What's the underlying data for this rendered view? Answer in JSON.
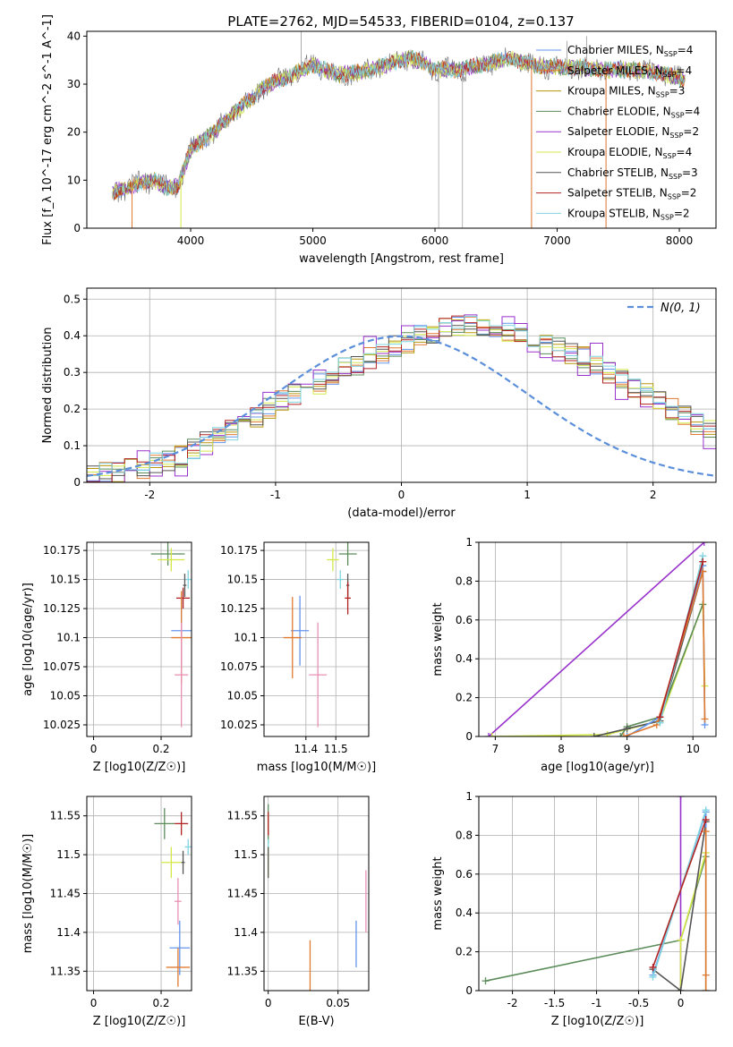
{
  "figure": {
    "title": "PLATE=2762, MJD=54533, FIBERID=0104, z=0.137"
  },
  "colors": {
    "Chabrier MILES, N_SSP=4": "#6495ED",
    "Salpeter MILES, N_SSP=4": "#E07A30",
    "Kroupa MILES, N_SSP=3": "#B8960C",
    "Chabrier ELODIE, N_SSP=4": "#5B8C5A",
    "Salpeter ELODIE, N_SSP=2": "#9932CC",
    "Kroupa ELODIE, N_SSP=4": "#D4E84A",
    "Chabrier STELIB, N_SSP=3": "#555555",
    "Salpeter STELIB, N_SSP=2": "#B22222",
    "Kroupa STELIB, N_SSP=2": "#7FD4E0",
    "extra_pink": "#E88FB4",
    "normal_curve": "#5B8FDB"
  },
  "chart_data": [
    {
      "id": "spectrum",
      "type": "line",
      "title": "PLATE=2762, MJD=54533, FIBERID=0104, z=0.137",
      "xlabel": "wavelength [Angstrom, rest frame]",
      "ylabel": "Flux [f_λ 10^-17 erg cm^-2 s^-1 A^-1]",
      "xlim": [
        3150,
        8300
      ],
      "ylim": [
        0,
        41
      ],
      "xticks": [
        4000,
        5000,
        6000,
        7000,
        8000
      ],
      "yticks": [
        0,
        10,
        20,
        30,
        40
      ],
      "legend_position": "top-right",
      "series": [
        {
          "name": "Chabrier MILES, N_SSP=4"
        },
        {
          "name": "Salpeter MILES, N_SSP=4"
        },
        {
          "name": "Kroupa MILES, N_SSP=3"
        },
        {
          "name": "Chabrier ELODIE, N_SSP=4"
        },
        {
          "name": "Salpeter ELODIE, N_SSP=2"
        },
        {
          "name": "Kroupa ELODIE, N_SSP=4"
        },
        {
          "name": "Chabrier STELIB, N_SSP=3"
        },
        {
          "name": "Salpeter STELIB, N_SSP=2"
        },
        {
          "name": "Kroupa STELIB, N_SSP=2"
        }
      ],
      "continuum": {
        "x": [
          3360,
          3500,
          3600,
          3700,
          3800,
          3900,
          4000,
          4100,
          4200,
          4300,
          4400,
          4500,
          4600,
          4800,
          5000,
          5200,
          5400,
          5600,
          5800,
          5900,
          6000,
          6200,
          6400,
          6600,
          6800,
          7000,
          7200,
          7400,
          7600,
          7800,
          8050
        ],
        "y": [
          7.5,
          8.5,
          9.5,
          10,
          8.5,
          9,
          16.5,
          18.5,
          20,
          23,
          25,
          27,
          29.5,
          31.5,
          34,
          32,
          32.5,
          34,
          35.5,
          34.5,
          33,
          33,
          34,
          35.5,
          34,
          33.5,
          33.5,
          33,
          33,
          32.5,
          31
        ]
      },
      "gray_dips": [
        {
          "x": 6030,
          "ymin": 0
        },
        {
          "x": 6225,
          "ymin": 0
        },
        {
          "x": 6790,
          "ymin": 0
        },
        {
          "x": 7400,
          "ymin": 0
        }
      ],
      "gray_spikes": [
        {
          "x": 4905,
          "y": 41
        },
        {
          "x": 7080,
          "y": 39
        },
        {
          "x": 7240,
          "y": 40
        }
      ],
      "edges": [
        {
          "series": 1,
          "x": 3520
        },
        {
          "series": 5,
          "x": 3920
        },
        {
          "series": 1,
          "x": 6790
        },
        {
          "series": 1,
          "x": 7400
        }
      ]
    },
    {
      "id": "residuals",
      "type": "bar",
      "xlabel": "(data-model)/error",
      "ylabel": "Normed distribution",
      "xlim": [
        -2.5,
        2.5
      ],
      "ylim": [
        0,
        0.53
      ],
      "xticks": [
        -2,
        -1,
        0,
        1,
        2
      ],
      "yticks": [
        0.0,
        0.1,
        0.2,
        0.3,
        0.4,
        0.5
      ],
      "legend": [
        {
          "label": "N(0, 1)",
          "style": "dashed"
        }
      ],
      "legend_position": "top-right",
      "bin_width": 0.1,
      "base_bins": [
        0.02,
        0.025,
        0.03,
        0.035,
        0.04,
        0.05,
        0.06,
        0.07,
        0.09,
        0.11,
        0.13,
        0.14,
        0.16,
        0.18,
        0.2,
        0.22,
        0.24,
        0.25,
        0.27,
        0.29,
        0.31,
        0.32,
        0.34,
        0.35,
        0.37,
        0.38,
        0.4,
        0.41,
        0.42,
        0.43,
        0.43,
        0.43,
        0.42,
        0.41,
        0.4,
        0.39,
        0.38,
        0.37,
        0.35,
        0.34,
        0.32,
        0.3,
        0.28,
        0.26,
        0.24,
        0.22,
        0.2,
        0.18,
        0.16,
        0.14
      ]
    },
    {
      "id": "age_vs_Z",
      "type": "scatter",
      "xlabel": "Z [log10(Z/Z☉)]",
      "ylabel": "age [log10(age/yr)]",
      "xlim": [
        -0.02,
        0.29
      ],
      "ylim": [
        10.015,
        10.182
      ],
      "xticks": [
        0.0,
        0.2
      ],
      "yticks": [
        10.025,
        10.05,
        10.075,
        10.1,
        10.125,
        10.15,
        10.175
      ],
      "points": [
        {
          "s": 3,
          "x": 0.22,
          "y": 10.172,
          "xe": 0.05,
          "ye": 0.01
        },
        {
          "s": 5,
          "x": 0.23,
          "y": 10.167,
          "xe": 0.04,
          "ye": 0.01
        },
        {
          "s": 8,
          "x": 0.28,
          "y": 10.15,
          "xe": 0.01,
          "ye": 0.008
        },
        {
          "s": 6,
          "x": 0.27,
          "y": 10.145,
          "xe": 0.005,
          "ye": 0.01
        },
        {
          "s": 7,
          "x": 0.265,
          "y": 10.134,
          "xe": 0.02,
          "ye": 0.009
        },
        {
          "s": 0,
          "x": 0.26,
          "y": 10.106,
          "xe": 0.03,
          "ye": 0.03
        },
        {
          "s": 1,
          "x": 0.26,
          "y": 10.1,
          "xe": 0.03,
          "ye": 0.04
        },
        {
          "s": "pink",
          "x": 0.26,
          "y": 10.068,
          "xe": 0.02,
          "ye": 0.045
        }
      ]
    },
    {
      "id": "age_vs_mass",
      "type": "scatter",
      "xlabel": "mass [log10(M/M☉)]",
      "ylabel": "",
      "xlim": [
        11.26,
        11.61
      ],
      "ylim": [
        10.015,
        10.182
      ],
      "xticks": [
        11.4,
        11.5
      ],
      "yticks": [
        10.025,
        10.05,
        10.075,
        10.1,
        10.125,
        10.15,
        10.175
      ],
      "points": [
        {
          "s": 3,
          "x": 11.54,
          "y": 10.172,
          "xe": 0.03,
          "ye": 0.01
        },
        {
          "s": 5,
          "x": 11.49,
          "y": 10.167,
          "xe": 0.02,
          "ye": 0.01
        },
        {
          "s": 8,
          "x": 11.515,
          "y": 10.15,
          "xe": 0.01,
          "ye": 0.008
        },
        {
          "s": 6,
          "x": 11.54,
          "y": 10.145,
          "xe": 0.005,
          "ye": 0.01
        },
        {
          "s": 7,
          "x": 11.54,
          "y": 10.134,
          "xe": 0.01,
          "ye": 0.014
        },
        {
          "s": 0,
          "x": 11.38,
          "y": 10.106,
          "xe": 0.03,
          "ye": 0.03
        },
        {
          "s": 1,
          "x": 11.355,
          "y": 10.1,
          "xe": 0.03,
          "ye": 0.035
        },
        {
          "s": "pink",
          "x": 11.44,
          "y": 10.068,
          "xe": 0.03,
          "ye": 0.045
        }
      ]
    },
    {
      "id": "massweight_vs_age",
      "type": "line",
      "xlabel": "age [log10(age/yr)]",
      "ylabel": "mass weight",
      "xlim": [
        6.75,
        10.35
      ],
      "ylim": [
        0,
        1
      ],
      "xticks": [
        7,
        8,
        9,
        10
      ],
      "yticks": [
        0.0,
        0.2,
        0.4,
        0.6,
        0.8,
        1.0
      ],
      "series": [
        {
          "s": 4,
          "x": [
            6.9,
            10.17
          ],
          "y": [
            0.0,
            1.0
          ]
        },
        {
          "s": 5,
          "x": [
            6.95,
            8.7,
            9.5,
            10.15,
            10.18
          ],
          "y": [
            0.0,
            0.01,
            0.08,
            0.68,
            0.26
          ]
        },
        {
          "s": 3,
          "x": [
            8.9,
            9.0,
            9.5,
            10.15
          ],
          "y": [
            0.0,
            0.05,
            0.1,
            0.68
          ]
        },
        {
          "s": 6,
          "x": [
            8.5,
            9.0,
            9.5,
            10.15
          ],
          "y": [
            0.0,
            0.04,
            0.08,
            0.85
          ]
        },
        {
          "s": 0,
          "x": [
            9.0,
            9.5,
            10.15,
            10.18
          ],
          "y": [
            0.0,
            0.1,
            0.88,
            0.06
          ]
        },
        {
          "s": 1,
          "x": [
            8.95,
            9.45,
            10.15,
            10.18
          ],
          "y": [
            0.0,
            0.06,
            0.85,
            0.09
          ]
        },
        {
          "s": 8,
          "x": [
            9.5,
            10.15
          ],
          "y": [
            0.07,
            0.93
          ]
        },
        {
          "s": 7,
          "x": [
            9.5,
            10.15
          ],
          "y": [
            0.1,
            0.9
          ]
        }
      ]
    },
    {
      "id": "mass_vs_Z",
      "type": "scatter",
      "xlabel": "Z [log10(Z/Z☉)]",
      "ylabel": "mass [log10(M/M☉)]",
      "xlim": [
        -0.02,
        0.29
      ],
      "ylim": [
        11.325,
        11.575
      ],
      "xticks": [
        0.0,
        0.2
      ],
      "yticks": [
        11.35,
        11.4,
        11.45,
        11.5,
        11.55
      ],
      "points": [
        {
          "s": 3,
          "x": 0.21,
          "y": 11.54,
          "xe": 0.03,
          "ye": 0.02
        },
        {
          "s": 7,
          "x": 0.26,
          "y": 11.54,
          "xe": 0.02,
          "ye": 0.015
        },
        {
          "s": 8,
          "x": 0.28,
          "y": 11.51,
          "xe": 0.01,
          "ye": 0.01
        },
        {
          "s": 5,
          "x": 0.23,
          "y": 11.49,
          "xe": 0.03,
          "ye": 0.02
        },
        {
          "s": 6,
          "x": 0.265,
          "y": 11.49,
          "xe": 0.005,
          "ye": 0.015
        },
        {
          "s": "pink",
          "x": 0.25,
          "y": 11.44,
          "xe": 0.01,
          "ye": 0.03
        },
        {
          "s": 0,
          "x": 0.255,
          "y": 11.38,
          "xe": 0.03,
          "ye": 0.035
        },
        {
          "s": 1,
          "x": 0.25,
          "y": 11.355,
          "xe": 0.035,
          "ye": 0.025
        }
      ]
    },
    {
      "id": "mass_vs_ebv",
      "type": "scatter",
      "xlabel": "E(B-V)",
      "ylabel": "",
      "xlim": [
        -0.003,
        0.072
      ],
      "ylim": [
        11.325,
        11.575
      ],
      "xticks": [
        0.0,
        0.05
      ],
      "yticks": [
        11.35,
        11.4,
        11.45,
        11.5,
        11.55
      ],
      "points": [
        {
          "s": 3,
          "x": 0.0,
          "y": 11.54,
          "xe": 0,
          "ye": 0.025
        },
        {
          "s": 7,
          "x": 0.0,
          "y": 11.54,
          "xe": 0,
          "ye": 0.015
        },
        {
          "s": 8,
          "x": 0.0,
          "y": 11.51,
          "xe": 0,
          "ye": 0.01
        },
        {
          "s": 5,
          "x": 0.0,
          "y": 11.49,
          "xe": 0,
          "ye": 0.02
        },
        {
          "s": 6,
          "x": 0.0,
          "y": 11.49,
          "xe": 0,
          "ye": 0.02
        },
        {
          "s": 1,
          "x": 0.03,
          "y": 11.355,
          "xe": 0,
          "ye": 0.035
        },
        {
          "s": 0,
          "x": 0.063,
          "y": 11.385,
          "xe": 0,
          "ye": 0.03
        },
        {
          "s": "pink",
          "x": 0.07,
          "y": 11.44,
          "xe": 0,
          "ye": 0.04
        }
      ]
    },
    {
      "id": "massweight_vs_Z",
      "type": "line",
      "xlabel": "Z [log10(Z/Z☉)]",
      "ylabel": "mass weight",
      "xlim": [
        -2.4,
        0.42
      ],
      "ylim": [
        0,
        1
      ],
      "xticks": [
        -2.0,
        -1.5,
        -1.0,
        -0.5,
        0.0
      ],
      "yticks": [
        0.0,
        0.2,
        0.4,
        0.6,
        0.8,
        1.0
      ],
      "series": [
        {
          "s": 3,
          "x": [
            -2.32,
            0.0,
            0.3
          ],
          "y": [
            0.05,
            0.26,
            0.69
          ]
        },
        {
          "s": 4,
          "x": [
            0.0,
            0.0
          ],
          "y": [
            0.0,
            1.0
          ]
        },
        {
          "s": 5,
          "x": [
            0.0,
            0.0,
            0.3,
            0.3
          ],
          "y": [
            0.0,
            0.26,
            0.71,
            0.0
          ]
        },
        {
          "s": 6,
          "x": [
            -0.33,
            0.0,
            0.3
          ],
          "y": [
            0.11,
            0.0,
            0.87
          ]
        },
        {
          "s": 0,
          "x": [
            -0.33,
            0.3,
            0.3
          ],
          "y": [
            0.08,
            0.92,
            0.0
          ]
        },
        {
          "s": 1,
          "x": [
            0.3,
            0.3,
            0.3
          ],
          "y": [
            0.0,
            0.82,
            0.08
          ]
        },
        {
          "s": 8,
          "x": [
            -0.33,
            0.3
          ],
          "y": [
            0.07,
            0.93
          ]
        },
        {
          "s": 7,
          "x": [
            -0.33,
            0.3
          ],
          "y": [
            0.12,
            0.88
          ]
        }
      ]
    }
  ]
}
